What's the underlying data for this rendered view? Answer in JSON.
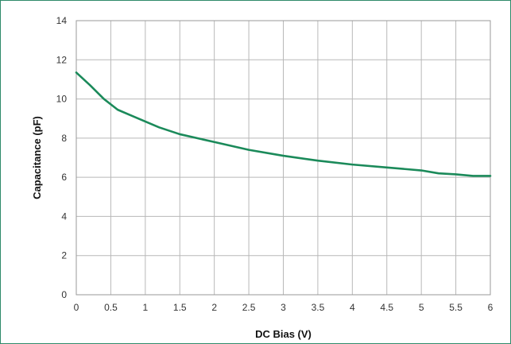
{
  "chart_data": {
    "type": "line",
    "title": "",
    "xlabel": "DC Bias (V)",
    "ylabel": "Capacitance (pF)",
    "xlim": [
      0,
      6
    ],
    "ylim": [
      0,
      14
    ],
    "x_ticks": [
      "0",
      "0.5",
      "1",
      "1.5",
      "2",
      "2.5",
      "3",
      "3.5",
      "4",
      "4.5",
      "5",
      "5.5",
      "6"
    ],
    "y_ticks": [
      "0",
      "2",
      "4",
      "6",
      "8",
      "10",
      "12",
      "14"
    ],
    "grid": true,
    "legend": "none",
    "series": [
      {
        "color": "#1b8a5a",
        "x": [
          0,
          0.2,
          0.4,
          0.6,
          0.8,
          1.0,
          1.2,
          1.5,
          2.0,
          2.5,
          3.0,
          3.5,
          4.0,
          4.5,
          5.0,
          5.25,
          5.5,
          5.75,
          6.0
        ],
        "y": [
          11.35,
          10.7,
          10.0,
          9.45,
          9.15,
          8.85,
          8.55,
          8.2,
          7.8,
          7.4,
          7.1,
          6.85,
          6.65,
          6.5,
          6.35,
          6.2,
          6.15,
          6.07,
          6.07
        ]
      }
    ]
  }
}
